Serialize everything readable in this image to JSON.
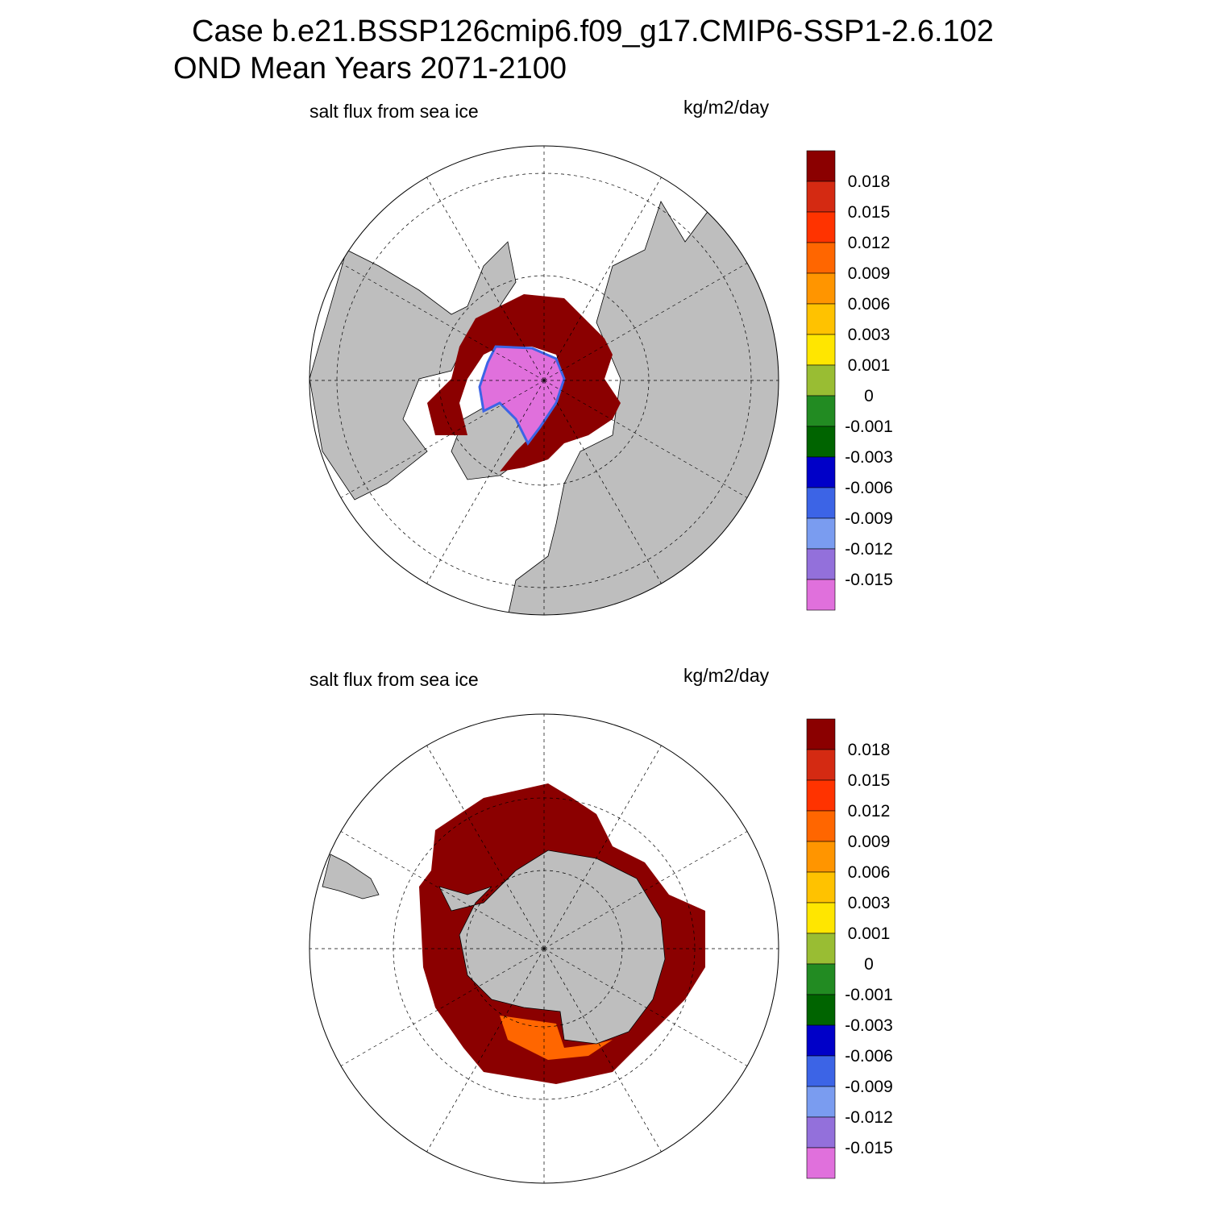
{
  "title": {
    "line1": "Case b.e21.BSSP126cmip6.f09_g17.CMIP6-SSP1-2.6.102",
    "line2": "OND Mean   Years 2071-2100"
  },
  "panels": [
    {
      "hemisphere": "north",
      "variable": "salt flux from sea ice",
      "units": "kg/m2/day"
    },
    {
      "hemisphere": "south",
      "variable": "salt flux from sea ice",
      "units": "kg/m2/day"
    }
  ],
  "colorbar": {
    "labels": [
      "0.018",
      "0.015",
      "0.012",
      "0.009",
      "0.006",
      "0.003",
      "0.001",
      "0",
      "-0.001",
      "-0.003",
      "-0.006",
      "-0.009",
      "-0.012",
      "-0.015"
    ],
    "colors": [
      "#8B0000",
      "#D42A12",
      "#FF3300",
      "#FF6600",
      "#FF9500",
      "#FFC200",
      "#FFE600",
      "#99BD33",
      "#228B22",
      "#006400",
      "#0000C8",
      "#3C64E6",
      "#7A9CF0",
      "#9370DB",
      "#E070DC"
    ]
  },
  "colors": {
    "land": "#BEBEBE",
    "ocean": "#FFFFFF"
  }
}
